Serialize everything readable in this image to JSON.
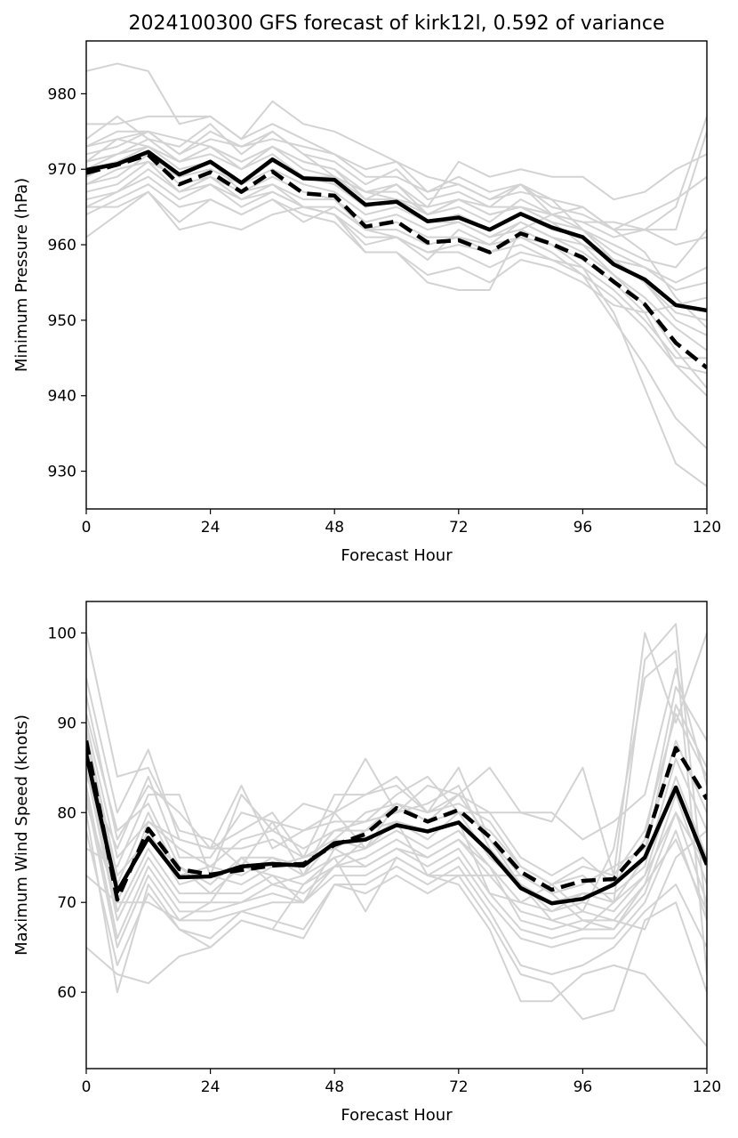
{
  "title": "2024100300 GFS forecast of kirk12l, 0.592 of variance",
  "colors": {
    "members": "#d3d3d3",
    "mean": "#000000",
    "pc": "#000000"
  },
  "chart_data": [
    {
      "type": "line",
      "panel": "top",
      "xlabel": "Forecast Hour",
      "ylabel": "Minimum Pressure (hPa)",
      "xlim": [
        0,
        120
      ],
      "ylim": [
        925,
        987
      ],
      "xticks": [
        0,
        24,
        48,
        72,
        96,
        120
      ],
      "yticks": [
        930,
        940,
        950,
        960,
        970,
        980
      ],
      "x": [
        0,
        6,
        12,
        18,
        24,
        30,
        36,
        42,
        48,
        54,
        60,
        66,
        72,
        78,
        84,
        90,
        96,
        102,
        108,
        114,
        120
      ],
      "series": [
        {
          "role": "mean",
          "style": "solid",
          "values": [
            969.9,
            970.7,
            972.3,
            969.3,
            971.0,
            968.2,
            971.3,
            968.8,
            968.6,
            965.3,
            965.7,
            963.1,
            963.6,
            962.0,
            964.1,
            962.3,
            961.0,
            957.4,
            955.4,
            952.0,
            951.3
          ]
        },
        {
          "role": "pc",
          "style": "dashed",
          "values": [
            969.5,
            970.6,
            971.9,
            968.0,
            969.6,
            967.0,
            969.7,
            966.8,
            966.5,
            962.4,
            963.1,
            960.3,
            960.6,
            959.0,
            961.5,
            960.1,
            958.3,
            955.1,
            952.1,
            947.0,
            943.7
          ]
        },
        {
          "role": "member",
          "values": [
            983,
            984,
            983,
            976,
            977,
            974,
            976,
            974,
            972,
            970,
            971,
            969,
            968,
            966,
            968,
            964,
            965,
            962,
            964,
            966,
            969
          ]
        },
        {
          "role": "member",
          "values": [
            976,
            976,
            977,
            977,
            977,
            974,
            979,
            976,
            975,
            973,
            971,
            967,
            969,
            967,
            968,
            966,
            962,
            959,
            957,
            955,
            957
          ]
        },
        {
          "role": "member",
          "values": [
            974,
            977,
            974,
            973,
            976,
            972,
            975,
            972,
            969,
            967,
            968,
            964,
            966,
            964,
            965,
            963,
            960,
            956,
            952,
            946,
            941
          ]
        },
        {
          "role": "member",
          "values": [
            973,
            974,
            975,
            974,
            973,
            971,
            973,
            971,
            970,
            967,
            966,
            965,
            966,
            965,
            965,
            964,
            963,
            961,
            962,
            965,
            977
          ]
        },
        {
          "role": "member",
          "values": [
            972,
            973,
            975,
            972,
            975,
            973,
            974,
            973,
            972,
            969,
            969,
            967,
            968,
            966,
            967,
            966,
            965,
            962,
            962,
            962,
            975
          ]
        },
        {
          "role": "member",
          "values": [
            971,
            974,
            973,
            971,
            972,
            970,
            973,
            970,
            969,
            967,
            967,
            964,
            965,
            963,
            966,
            964,
            962,
            958,
            955,
            950,
            948
          ]
        },
        {
          "role": "member",
          "values": [
            970,
            972,
            974,
            971,
            973,
            970,
            972,
            969,
            969,
            966,
            966,
            964,
            966,
            964,
            965,
            963,
            962,
            960,
            958,
            957,
            962
          ]
        },
        {
          "role": "member",
          "values": [
            970,
            971,
            973,
            970,
            971,
            968,
            971,
            969,
            968,
            965,
            966,
            963,
            964,
            962,
            964,
            962,
            961,
            958,
            957,
            954,
            955
          ]
        },
        {
          "role": "member",
          "values": [
            969,
            971,
            972,
            969,
            970,
            968,
            970,
            968,
            967,
            964,
            965,
            963,
            963,
            961,
            963,
            961,
            959,
            956,
            953,
            949,
            946
          ]
        },
        {
          "role": "member",
          "values": [
            968,
            970,
            971,
            969,
            971,
            967,
            969,
            967,
            966,
            963,
            964,
            962,
            963,
            961,
            962,
            960,
            958,
            955,
            951,
            944,
            940
          ]
        },
        {
          "role": "member",
          "values": [
            968,
            969,
            972,
            968,
            969,
            967,
            968,
            966,
            966,
            962,
            963,
            961,
            961,
            960,
            961,
            960,
            957,
            951,
            941,
            931,
            928
          ]
        },
        {
          "role": "member",
          "values": [
            967,
            968,
            971,
            967,
            969,
            966,
            967,
            965,
            965,
            962,
            962,
            960,
            961,
            959,
            961,
            959,
            956,
            950,
            944,
            937,
            933
          ]
        },
        {
          "role": "member",
          "values": [
            966,
            967,
            970,
            967,
            968,
            966,
            968,
            965,
            964,
            961,
            961,
            959,
            960,
            959,
            960,
            958,
            957,
            954,
            950,
            945,
            945
          ]
        },
        {
          "role": "member",
          "values": [
            965,
            967,
            969,
            966,
            968,
            965,
            967,
            965,
            964,
            960,
            961,
            959,
            959,
            957,
            959,
            958,
            956,
            953,
            949,
            944,
            943
          ]
        },
        {
          "role": "member",
          "values": [
            964,
            966,
            968,
            965,
            966,
            964,
            966,
            964,
            963,
            959,
            959,
            956,
            957,
            955,
            958,
            957,
            955,
            952,
            951,
            952,
            953
          ]
        },
        {
          "role": "member",
          "values": [
            961,
            964,
            967,
            962,
            963,
            962,
            964,
            965,
            964,
            959,
            959,
            955,
            954,
            954,
            962,
            964,
            963,
            963,
            962,
            960,
            961
          ]
        },
        {
          "role": "member",
          "values": [
            965,
            965,
            967,
            963,
            966,
            964,
            966,
            963,
            965,
            962,
            961,
            958,
            962,
            960,
            963,
            961,
            960,
            958,
            955,
            951,
            950
          ]
        },
        {
          "role": "member",
          "values": [
            971,
            972,
            973,
            971,
            973,
            971,
            973,
            971,
            970,
            966,
            968,
            965,
            971,
            969,
            970,
            969,
            969,
            966,
            967,
            970,
            972
          ]
        },
        {
          "role": "member",
          "values": [
            973,
            975,
            975,
            972,
            974,
            973,
            975,
            972,
            971,
            968,
            970,
            966,
            967,
            965,
            968,
            965,
            964,
            962,
            959,
            953,
            949
          ]
        }
      ]
    },
    {
      "type": "line",
      "panel": "bottom",
      "xlabel": "Forecast Hour",
      "ylabel": "Maximum Wind Speed (knots)",
      "xlim": [
        0,
        120
      ],
      "ylim": [
        51.5,
        103.5
      ],
      "xticks": [
        0,
        24,
        48,
        72,
        96,
        120
      ],
      "yticks": [
        60,
        70,
        80,
        90,
        100
      ],
      "x": [
        0,
        6,
        12,
        18,
        24,
        30,
        36,
        42,
        48,
        54,
        60,
        66,
        72,
        78,
        84,
        90,
        96,
        102,
        108,
        114,
        120
      ],
      "series": [
        {
          "role": "mean",
          "style": "solid",
          "values": [
            86.5,
            71.2,
            77.2,
            72.8,
            72.9,
            74.0,
            74.3,
            74.1,
            76.6,
            77.0,
            78.6,
            77.9,
            78.9,
            75.6,
            71.6,
            69.9,
            70.4,
            72.0,
            75.0,
            82.8,
            74.2
          ]
        },
        {
          "role": "pc",
          "style": "dashed",
          "values": [
            88.0,
            70.3,
            78.2,
            73.7,
            73.1,
            73.6,
            74.1,
            74.3,
            76.4,
            77.6,
            80.5,
            79.0,
            80.3,
            77.3,
            73.4,
            71.4,
            72.4,
            72.6,
            76.5,
            87.2,
            81.5
          ]
        },
        {
          "role": "member",
          "values": [
            100,
            84,
            85,
            78,
            77,
            74,
            79,
            73,
            80,
            86,
            80,
            83,
            82,
            85,
            80,
            79,
            85,
            73,
            100,
            90,
            100
          ]
        },
        {
          "role": "member",
          "values": [
            95,
            80,
            87,
            77,
            76,
            78,
            80,
            75,
            82,
            82,
            84,
            80,
            85,
            77,
            72,
            68,
            67,
            70,
            97,
            101,
            68
          ]
        },
        {
          "role": "member",
          "values": [
            93,
            77,
            83,
            80,
            76,
            83,
            76,
            78,
            80,
            76,
            79,
            78,
            79,
            71,
            70,
            72,
            69,
            76,
            95,
            98,
            62
          ]
        },
        {
          "role": "member",
          "values": [
            90,
            75,
            79,
            76,
            74,
            77,
            78,
            76,
            78,
            79,
            82,
            84,
            80,
            80,
            75,
            73,
            75,
            72,
            77,
            94,
            88
          ]
        },
        {
          "role": "member",
          "values": [
            89,
            73,
            77,
            74,
            72,
            75,
            75,
            74,
            78,
            78,
            81,
            80,
            81,
            79,
            74,
            72,
            73,
            70,
            75,
            92,
            85
          ]
        },
        {
          "role": "member",
          "values": [
            88,
            72,
            80,
            73,
            74,
            73,
            75,
            73,
            77,
            76,
            81,
            79,
            82,
            77,
            73,
            71,
            72,
            74,
            76,
            88,
            80
          ]
        },
        {
          "role": "member",
          "values": [
            87,
            71,
            78,
            72,
            73,
            72,
            74,
            75,
            76,
            78,
            79,
            77,
            80,
            75,
            72,
            70,
            71,
            71,
            74,
            86,
            78
          ]
        },
        {
          "role": "member",
          "values": [
            86,
            69,
            76,
            71,
            71,
            71,
            73,
            72,
            75,
            76,
            78,
            76,
            78,
            74,
            70,
            69,
            70,
            69,
            73,
            84,
            75
          ]
        },
        {
          "role": "member",
          "values": [
            85,
            68,
            75,
            70,
            70,
            70,
            72,
            71,
            74,
            75,
            77,
            75,
            77,
            73,
            69,
            68,
            69,
            68,
            72,
            82,
            72
          ]
        },
        {
          "role": "member",
          "values": [
            83,
            66,
            74,
            69,
            69,
            70,
            71,
            70,
            74,
            74,
            76,
            74,
            76,
            71,
            67,
            66,
            67,
            67,
            71,
            80,
            70
          ]
        },
        {
          "role": "member",
          "values": [
            82,
            65,
            73,
            68,
            68,
            69,
            70,
            70,
            73,
            73,
            75,
            73,
            75,
            70,
            66,
            65,
            66,
            66,
            70,
            78,
            68
          ]
        },
        {
          "role": "member",
          "values": [
            80,
            60,
            72,
            67,
            66,
            69,
            68,
            67,
            72,
            72,
            74,
            72,
            74,
            69,
            63,
            62,
            63,
            65,
            69,
            72,
            65
          ]
        },
        {
          "role": "member",
          "values": [
            78,
            63,
            71,
            67,
            65,
            68,
            67,
            66,
            72,
            71,
            73,
            71,
            73,
            68,
            62,
            61,
            57,
            58,
            68,
            70,
            60
          ]
        },
        {
          "role": "member",
          "values": [
            73,
            70,
            70,
            68,
            70,
            75,
            72,
            73,
            75,
            69,
            75,
            73,
            72,
            67,
            59,
            59,
            62,
            63,
            62,
            58,
            54
          ]
        },
        {
          "role": "member",
          "values": [
            65,
            62,
            61,
            64,
            65,
            68,
            67,
            72,
            74,
            77,
            79,
            73,
            73,
            73,
            73,
            71,
            68,
            68,
            67,
            75,
            78
          ]
        },
        {
          "role": "member",
          "values": [
            76,
            74,
            82,
            82,
            73,
            82,
            78,
            81,
            80,
            82,
            83,
            80,
            82,
            80,
            80,
            80,
            77,
            79,
            82,
            96,
            83
          ]
        },
        {
          "role": "member",
          "values": [
            81,
            70,
            79,
            77,
            76,
            76,
            77,
            75,
            77,
            80,
            81,
            79,
            80,
            78,
            74,
            72,
            74,
            73,
            78,
            91,
            84
          ]
        },
        {
          "role": "member",
          "values": [
            84,
            76,
            84,
            75,
            75,
            80,
            79,
            78,
            79,
            79,
            80,
            81,
            83,
            76,
            72,
            69,
            71,
            70,
            73,
            80,
            74
          ]
        },
        {
          "role": "member",
          "values": [
            91,
            78,
            81,
            74,
            71,
            74,
            73,
            70,
            76,
            74,
            76,
            75,
            77,
            74,
            68,
            67,
            68,
            67,
            72,
            77,
            69
          ]
        }
      ]
    }
  ]
}
